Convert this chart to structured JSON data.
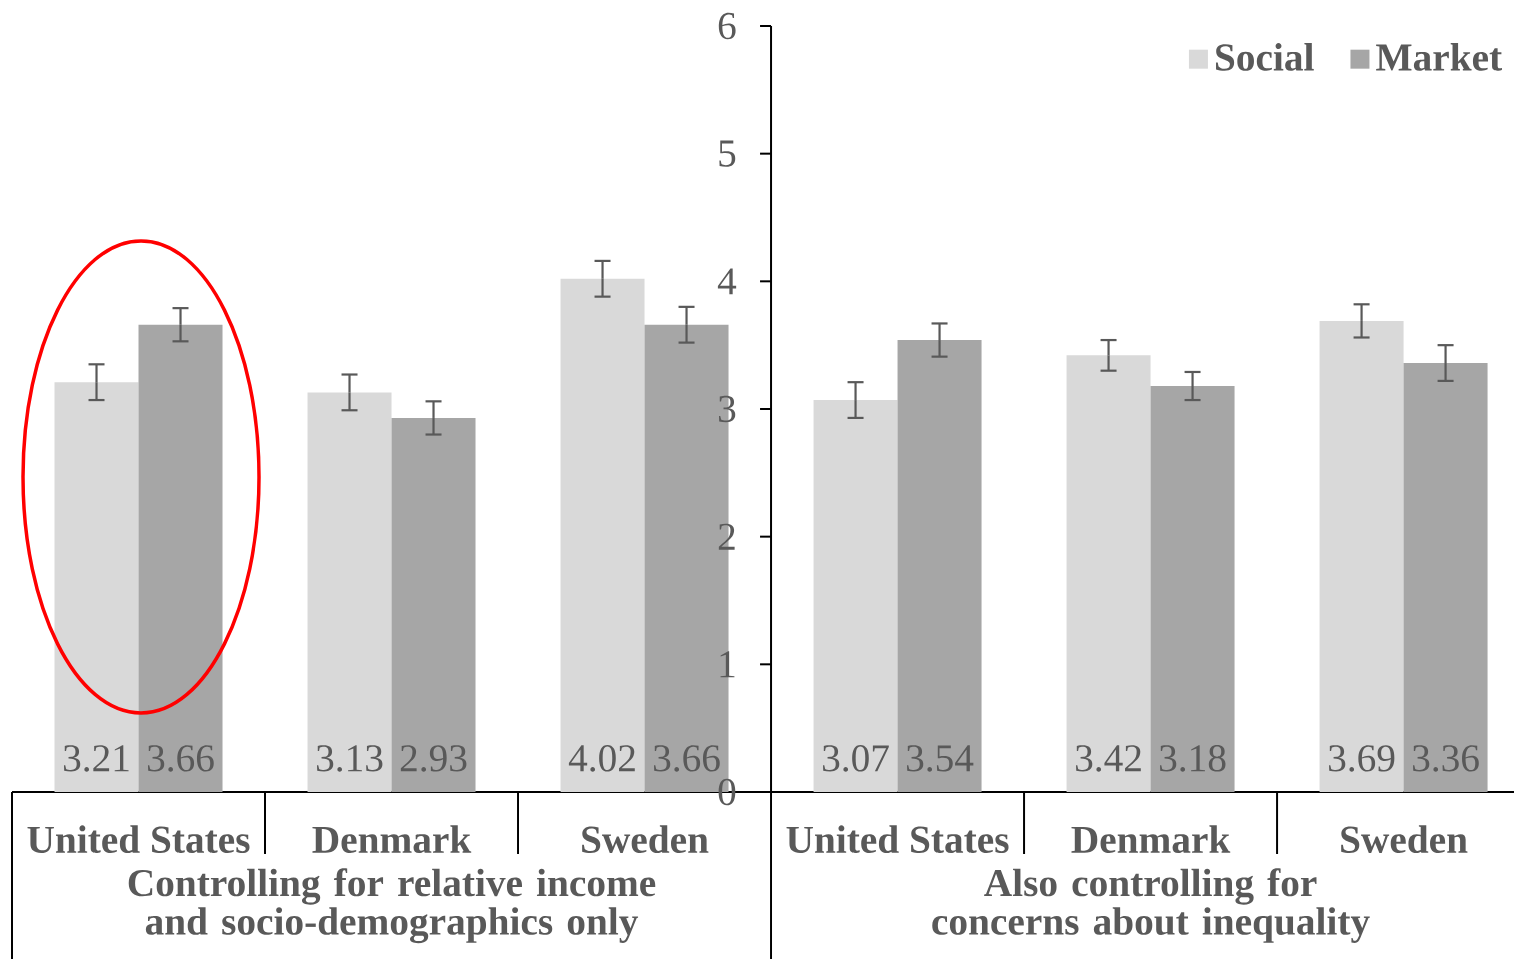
{
  "chart_data": {
    "type": "bar",
    "categories": [
      "United States",
      "Denmark",
      "Sweden",
      "United States",
      "Denmark",
      "Sweden"
    ],
    "series": [
      {
        "name": "Social",
        "color": "#d9d9d9",
        "values": [
          3.21,
          3.13,
          4.02,
          3.07,
          3.42,
          3.69
        ],
        "errors": [
          0.14,
          0.14,
          0.14,
          0.14,
          0.12,
          0.13
        ],
        "value_labels": [
          "3.21",
          "3.13",
          "4.02",
          "3.07",
          "3.42",
          "3.69"
        ]
      },
      {
        "name": "Market",
        "color": "#a6a6a6",
        "values": [
          3.66,
          2.93,
          3.66,
          3.54,
          3.18,
          3.36
        ],
        "errors": [
          0.13,
          0.13,
          0.14,
          0.13,
          0.11,
          0.14
        ],
        "value_labels": [
          "3.66",
          "2.93",
          "3.66",
          "3.54",
          "3.18",
          "3.36"
        ]
      }
    ],
    "annotations": [
      "Controlling for relative income and socio-demographics only",
      "Also controlling for concerns about inequality"
    ],
    "ylim": [
      0,
      6
    ],
    "yticks": [
      0,
      1,
      2,
      3,
      4,
      5,
      6
    ],
    "legend": "top right"
  }
}
